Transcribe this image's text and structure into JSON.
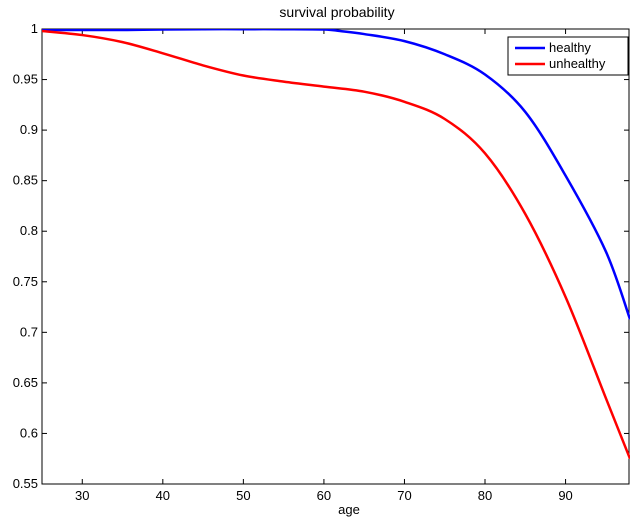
{
  "chart_data": {
    "type": "line",
    "title": "survival probability",
    "xlabel": "age",
    "ylabel": "",
    "xlim": [
      25,
      98
    ],
    "ylim": [
      0.55,
      1
    ],
    "xticks": [
      30,
      40,
      50,
      60,
      70,
      80,
      90
    ],
    "yticks": [
      0.55,
      0.6,
      0.65,
      0.7,
      0.75,
      0.8,
      0.85,
      0.9,
      0.95,
      1
    ],
    "ytick_labels": [
      "0.55",
      "0.6",
      "0.65",
      "0.7",
      "0.75",
      "0.8",
      "0.85",
      "0.9",
      "0.95",
      "1"
    ],
    "grid": false,
    "legend_position": "top-right",
    "series": [
      {
        "name": "healthy",
        "color": "#0000ff",
        "x": [
          25,
          30,
          35,
          40,
          45,
          50,
          55,
          60,
          62,
          65,
          70,
          75,
          80,
          85,
          90,
          95,
          98
        ],
        "y": [
          0.999,
          0.999,
          0.999,
          0.9995,
          0.9998,
          0.9998,
          0.9998,
          0.9995,
          0.998,
          0.995,
          0.988,
          0.975,
          0.955,
          0.918,
          0.855,
          0.78,
          0.713
        ]
      },
      {
        "name": "unhealthy",
        "color": "#ff0000",
        "x": [
          25,
          30,
          35,
          40,
          45,
          50,
          55,
          60,
          65,
          70,
          75,
          80,
          85,
          90,
          95,
          98
        ],
        "y": [
          0.998,
          0.994,
          0.987,
          0.976,
          0.964,
          0.954,
          0.948,
          0.943,
          0.938,
          0.928,
          0.911,
          0.877,
          0.817,
          0.735,
          0.635,
          0.575
        ]
      }
    ]
  }
}
